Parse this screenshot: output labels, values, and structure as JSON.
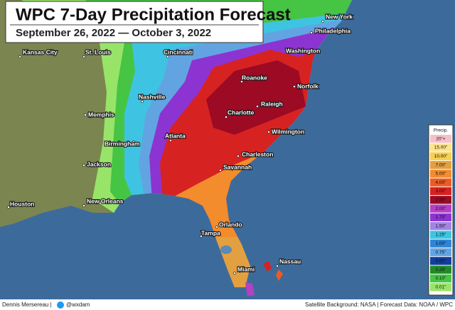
{
  "header": {
    "title": "WPC 7-Day Precipitation Forecast",
    "subtitle": "September 26, 2022 — October 3, 2022"
  },
  "cities": [
    "New York",
    "Philadelphia",
    "Kansas City",
    "St. Louis",
    "Cincinnati",
    "Washington",
    "Roanoke",
    "Norfolk",
    "Nashville",
    "Memphis",
    "Raleigh",
    "Charlotte",
    "Wilmington",
    "Atlanta",
    "Birmingham",
    "Charleston",
    "Jackson",
    "Savannah",
    "New Orleans",
    "Houston",
    "Orlando",
    "Tampa",
    "Miami",
    "Nassau"
  ],
  "legend": {
    "title": "Precip.",
    "items": [
      {
        "label": "20\"+",
        "color": "#f7c0c8"
      },
      {
        "label": "15.00\"",
        "color": "#fde38c"
      },
      {
        "label": "10.00\"",
        "color": "#f6d050"
      },
      {
        "label": "7.00\"",
        "color": "#e3a040"
      },
      {
        "label": "5.00\"",
        "color": "#f28c2c"
      },
      {
        "label": "4.00\"",
        "color": "#ee5a22"
      },
      {
        "label": "3.00\"",
        "color": "#d72222"
      },
      {
        "label": "2.50\"",
        "color": "#9c0a24"
      },
      {
        "label": "2.00\"",
        "color": "#b440c4"
      },
      {
        "label": "1.75\"",
        "color": "#8c34d2"
      },
      {
        "label": "1.50\"",
        "color": "#a184e4"
      },
      {
        "label": "1.25\"",
        "color": "#3ec4e2"
      },
      {
        "label": "1.00\"",
        "color": "#2f84d4"
      },
      {
        "label": "0.75\"",
        "color": "#62a4e2"
      },
      {
        "label": "0.50\"",
        "color": "#123e9e"
      },
      {
        "label": "0.25\"",
        "color": "#208a28"
      },
      {
        "label": "0.10\"",
        "color": "#46c444"
      },
      {
        "label": "0.01\"",
        "color": "#98e468"
      }
    ]
  },
  "footer": {
    "author": "Dennis Mersereau |",
    "handle": "@wxdam",
    "credits": "Satellite Background: NASA | Forecast Data: NOAA / WPC"
  }
}
